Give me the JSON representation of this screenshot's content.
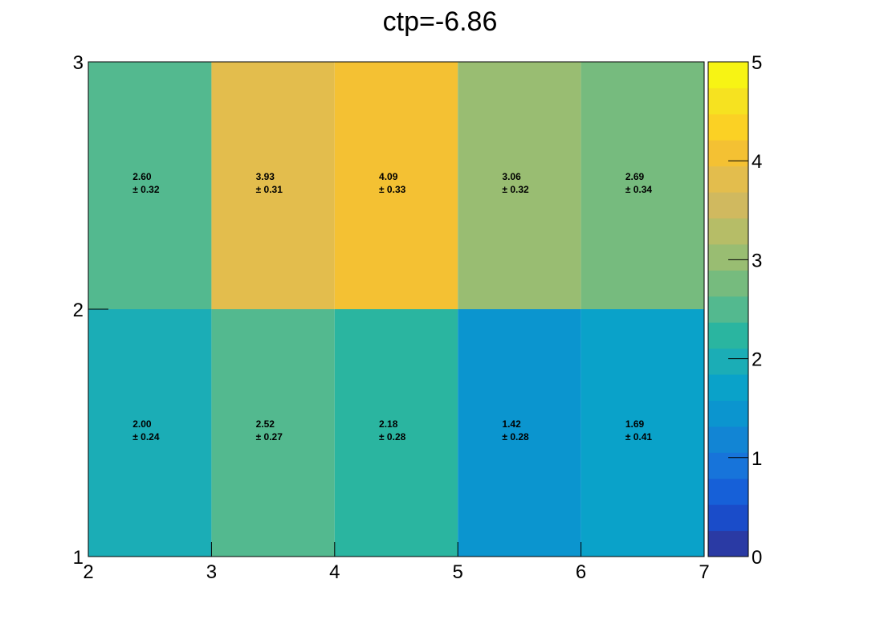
{
  "chart_data": {
    "type": "heatmap",
    "title": "ctp=-6.86",
    "x_edges": [
      2,
      3,
      4,
      5,
      6,
      7
    ],
    "y_edges": [
      1,
      2,
      3
    ],
    "xlim": [
      2,
      7
    ],
    "ylim": [
      1,
      3
    ],
    "x_ticks": [
      "2",
      "3",
      "4",
      "5",
      "6",
      "7"
    ],
    "y_ticks": [
      "1",
      "2",
      "3"
    ],
    "z_range": [
      0,
      5
    ],
    "z_ticks": [
      "0",
      "1",
      "2",
      "3",
      "4",
      "5"
    ],
    "palette": [
      "#2a3aa4",
      "#1a4cc9",
      "#1660d8",
      "#1774da",
      "#1285d4",
      "#0b95cf",
      "#0aa2c9",
      "#1badb6",
      "#2ab5a0",
      "#53b98f",
      "#76bb7e",
      "#99bd72",
      "#b6bd67",
      "#d0b95f",
      "#e3bd4d",
      "#f4c133",
      "#fbd124",
      "#f6e220",
      "#f7f414"
    ],
    "cells": [
      {
        "x_bin": 0,
        "y_bin": 0,
        "value": 2.0,
        "label": "2.00",
        "error": "± 0.24"
      },
      {
        "x_bin": 1,
        "y_bin": 0,
        "value": 2.52,
        "label": "2.52",
        "error": "± 0.27"
      },
      {
        "x_bin": 2,
        "y_bin": 0,
        "value": 2.18,
        "label": "2.18",
        "error": "± 0.28"
      },
      {
        "x_bin": 3,
        "y_bin": 0,
        "value": 1.42,
        "label": "1.42",
        "error": "± 0.28"
      },
      {
        "x_bin": 4,
        "y_bin": 0,
        "value": 1.69,
        "label": "1.69",
        "error": "± 0.41"
      },
      {
        "x_bin": 0,
        "y_bin": 1,
        "value": 2.6,
        "label": "2.60",
        "error": "± 0.32"
      },
      {
        "x_bin": 1,
        "y_bin": 1,
        "value": 3.93,
        "label": "3.93",
        "error": "± 0.31"
      },
      {
        "x_bin": 2,
        "y_bin": 1,
        "value": 4.09,
        "label": "4.09",
        "error": "± 0.33"
      },
      {
        "x_bin": 3,
        "y_bin": 1,
        "value": 3.06,
        "label": "3.06",
        "error": "± 0.32"
      },
      {
        "x_bin": 4,
        "y_bin": 1,
        "value": 2.69,
        "label": "2.69",
        "error": "± 0.34"
      }
    ],
    "xlabel": "",
    "ylabel": "",
    "grid": false,
    "colorbar": "right"
  }
}
